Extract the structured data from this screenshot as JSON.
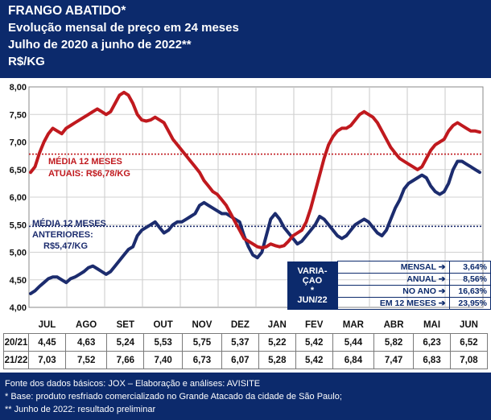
{
  "header": {
    "title": "FRANGO ABATIDO*",
    "subtitle1": "Evolução mensal de preço em 24 meses",
    "subtitle2": "Julho de 2020 a junho de 2022**",
    "unit": "R$/KG"
  },
  "annotations": {
    "media_atuais_line1": "MÉDIA 12 MESES",
    "media_atuais_line2": "ATUAIS: R$6,78/KG",
    "media_anteriores_line1": "MÉDIA 12 MESES",
    "media_anteriores_line2": "ANTERIORES:",
    "media_anteriores_line3": "R$5,47/KG"
  },
  "variation_box": {
    "header_lines": [
      "VARIA-",
      "ÇAO",
      "*",
      "JUN/22"
    ],
    "rows": [
      {
        "label": "MENSAL",
        "value": "3,64%"
      },
      {
        "label": "ANUAL",
        "value": "8,56%"
      },
      {
        "label": "NO ANO",
        "value": "16,63%"
      },
      {
        "label": "EM 12 MESES",
        "value": "23,95%"
      }
    ]
  },
  "footer": {
    "line1": "Fonte dos dados básicos: JOX – Elaboração e análises: AVISITE",
    "line2": "*   Base: produto resfriado comercializado no Grande Atacado da cidade de São Paulo;",
    "line3": "** Junho de 2022: resultado preliminar"
  },
  "colors": {
    "red_series": "#c0191e",
    "blue_series": "#1c2c6e",
    "header_bg": "#0c2a6c"
  },
  "chart_data": {
    "type": "line",
    "ylim": [
      4.0,
      8.0
    ],
    "yticks": [
      "4,00",
      "4,50",
      "5,00",
      "5,50",
      "6,00",
      "6,50",
      "7,00",
      "7,50",
      "8,00"
    ],
    "categories": [
      "JUL",
      "AGO",
      "SET",
      "OUT",
      "NOV",
      "DEZ",
      "JAN",
      "FEV",
      "MAR",
      "ABR",
      "MAI",
      "JUN"
    ],
    "mean_lines": [
      {
        "value": 6.78,
        "color": "#c0191e"
      },
      {
        "value": 5.47,
        "color": "#1c2c6e"
      }
    ],
    "series": [
      {
        "name": "20/21",
        "color": "#1c2c6e",
        "monthly": [
          "4,45",
          "4,63",
          "5,24",
          "5,53",
          "5,75",
          "5,37",
          "5,22",
          "5,42",
          "5,44",
          "5,82",
          "6,23",
          "6,52"
        ],
        "daily": [
          4.25,
          4.3,
          4.38,
          4.45,
          4.52,
          4.55,
          4.55,
          4.5,
          4.45,
          4.52,
          4.55,
          4.6,
          4.65,
          4.72,
          4.75,
          4.7,
          4.65,
          4.6,
          4.65,
          4.75,
          4.85,
          4.95,
          5.05,
          5.1,
          5.3,
          5.4,
          5.45,
          5.5,
          5.55,
          5.45,
          5.35,
          5.4,
          5.5,
          5.55,
          5.55,
          5.6,
          5.65,
          5.7,
          5.85,
          5.9,
          5.85,
          5.8,
          5.75,
          5.7,
          5.7,
          5.65,
          5.6,
          5.55,
          5.3,
          5.1,
          4.95,
          4.9,
          5.0,
          5.3,
          5.6,
          5.7,
          5.6,
          5.45,
          5.35,
          5.25,
          5.15,
          5.2,
          5.3,
          5.4,
          5.5,
          5.65,
          5.6,
          5.5,
          5.4,
          5.3,
          5.25,
          5.3,
          5.4,
          5.5,
          5.55,
          5.6,
          5.55,
          5.45,
          5.35,
          5.3,
          5.4,
          5.6,
          5.8,
          5.95,
          6.15,
          6.25,
          6.3,
          6.35,
          6.4,
          6.35,
          6.2,
          6.1,
          6.05,
          6.1,
          6.25,
          6.5,
          6.65,
          6.65,
          6.6,
          6.55,
          6.5,
          6.45
        ]
      },
      {
        "name": "21/22",
        "color": "#c0191e",
        "monthly": [
          "7,03",
          "7,52",
          "7,66",
          "7,40",
          "6,73",
          "6,07",
          "5,28",
          "5,42",
          "6,84",
          "7,47",
          "6,83",
          "7,08"
        ],
        "daily": [
          6.45,
          6.55,
          6.8,
          7.0,
          7.15,
          7.25,
          7.2,
          7.15,
          7.25,
          7.3,
          7.35,
          7.4,
          7.45,
          7.5,
          7.55,
          7.6,
          7.55,
          7.5,
          7.55,
          7.7,
          7.85,
          7.9,
          7.85,
          7.7,
          7.5,
          7.4,
          7.38,
          7.4,
          7.45,
          7.4,
          7.35,
          7.2,
          7.05,
          6.95,
          6.85,
          6.75,
          6.65,
          6.55,
          6.45,
          6.3,
          6.2,
          6.1,
          6.05,
          5.95,
          5.85,
          5.7,
          5.55,
          5.4,
          5.25,
          5.2,
          5.15,
          5.1,
          5.08,
          5.1,
          5.15,
          5.12,
          5.1,
          5.12,
          5.2,
          5.3,
          5.35,
          5.4,
          5.55,
          5.8,
          6.1,
          6.4,
          6.7,
          6.95,
          7.1,
          7.2,
          7.25,
          7.25,
          7.3,
          7.4,
          7.5,
          7.55,
          7.5,
          7.45,
          7.35,
          7.2,
          7.05,
          6.9,
          6.8,
          6.7,
          6.65,
          6.6,
          6.55,
          6.5,
          6.55,
          6.7,
          6.85,
          6.95,
          7.0,
          7.05,
          7.2,
          7.3,
          7.35,
          7.3,
          7.25,
          7.2,
          7.2,
          7.18
        ]
      }
    ]
  }
}
